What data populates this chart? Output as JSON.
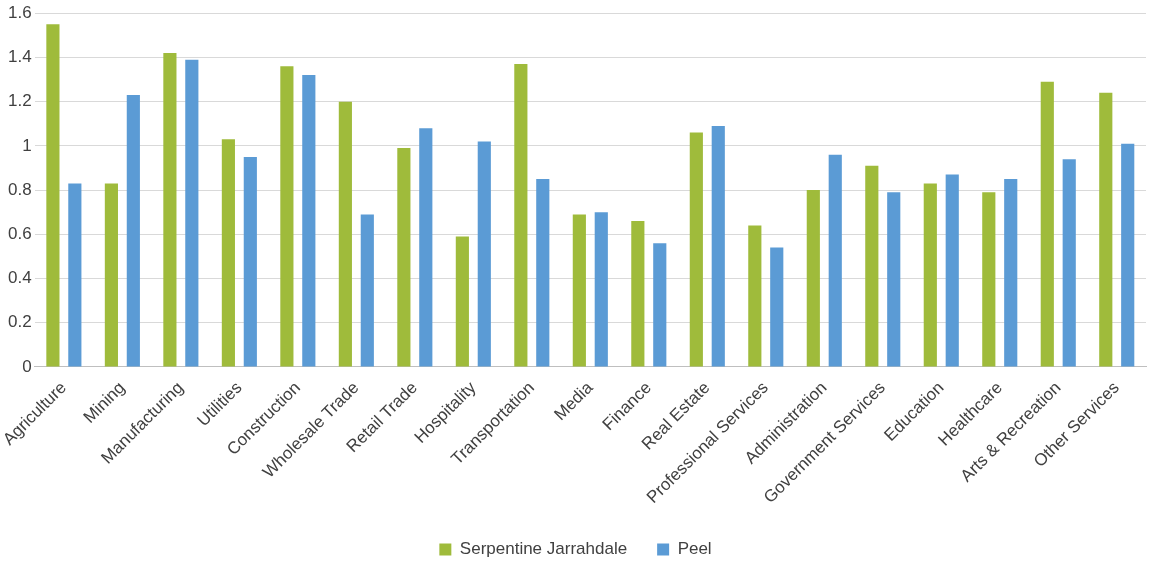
{
  "chart_data": {
    "type": "bar",
    "categories": [
      "Agriculture",
      "Mining",
      "Manufacturing",
      "Utilities",
      "Construction",
      "Wholesale Trade",
      "Retail Trade",
      "Hospitality",
      "Transportation",
      "Media",
      "Finance",
      "Real Estate",
      "Professional Services",
      "Administration",
      "Government Services",
      "Education",
      "Healthcare",
      "Arts & Recreation",
      "Other Services"
    ],
    "series": [
      {
        "name": "Serpentine Jarrahdale",
        "color": "#9fbb3b",
        "values": [
          1.55,
          0.83,
          1.42,
          1.03,
          1.36,
          1.2,
          0.99,
          0.59,
          1.37,
          0.69,
          0.66,
          1.06,
          0.64,
          0.8,
          0.91,
          0.83,
          0.79,
          1.29,
          1.24
        ]
      },
      {
        "name": "Peel",
        "color": "#5b9bd5",
        "values": [
          0.83,
          1.23,
          1.39,
          0.95,
          1.32,
          0.69,
          1.08,
          1.02,
          0.85,
          0.7,
          0.56,
          1.09,
          0.54,
          0.96,
          0.79,
          0.87,
          0.85,
          0.94,
          1.01
        ]
      }
    ],
    "ylim": [
      0,
      1.6
    ],
    "yticks": [
      0,
      0.2,
      0.4,
      0.6,
      0.8,
      1,
      1.2,
      1.4,
      1.6
    ],
    "grid": "y",
    "legend": "bottom"
  }
}
